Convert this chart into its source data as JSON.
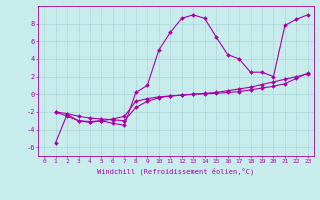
{
  "xlabel": "Windchill (Refroidissement éolien,°C)",
  "bg_color": "#c8ecec",
  "line_color": "#aa00aa",
  "grid_color": "#b0dada",
  "xlim": [
    -0.5,
    23.5
  ],
  "ylim": [
    -7,
    10
  ],
  "xticks": [
    0,
    1,
    2,
    3,
    4,
    5,
    6,
    7,
    8,
    9,
    10,
    11,
    12,
    13,
    14,
    15,
    16,
    17,
    18,
    19,
    20,
    21,
    22,
    23
  ],
  "yticks": [
    -6,
    -4,
    -2,
    0,
    2,
    4,
    6,
    8
  ],
  "series1_x": [
    1,
    2,
    3,
    4,
    5,
    6,
    7,
    8,
    9,
    10,
    11,
    12,
    13,
    14,
    15,
    16,
    17,
    18,
    19,
    20,
    21,
    22,
    23
  ],
  "series1_y": [
    -2.0,
    -2.5,
    -3.0,
    -3.2,
    -3.0,
    -3.3,
    -3.5,
    0.2,
    1.0,
    5.0,
    7.0,
    8.6,
    9.0,
    8.6,
    6.5,
    4.5,
    4.0,
    2.5,
    2.5,
    2.0,
    7.8,
    8.5,
    9.0
  ],
  "series2_x": [
    1,
    2,
    3,
    4,
    5,
    6,
    7,
    8,
    9,
    10,
    11,
    12,
    13,
    14,
    15,
    16,
    17,
    18,
    19,
    20,
    21,
    22,
    23
  ],
  "series2_y": [
    -5.5,
    -2.3,
    -3.0,
    -3.1,
    -3.0,
    -2.8,
    -2.5,
    -0.8,
    -0.5,
    -0.3,
    -0.2,
    -0.1,
    0.0,
    0.1,
    0.2,
    0.4,
    0.6,
    0.8,
    1.1,
    1.4,
    1.7,
    2.0,
    2.3
  ],
  "series3_x": [
    1,
    2,
    3,
    4,
    5,
    6,
    7,
    8,
    9,
    10,
    11,
    12,
    13,
    14,
    15,
    16,
    17,
    18,
    19,
    20,
    21,
    22,
    23
  ],
  "series3_y": [
    -2.0,
    -2.2,
    -2.5,
    -2.7,
    -2.8,
    -2.9,
    -3.0,
    -1.5,
    -0.8,
    -0.4,
    -0.2,
    -0.1,
    0.0,
    0.05,
    0.1,
    0.2,
    0.3,
    0.5,
    0.7,
    0.9,
    1.2,
    1.8,
    2.4
  ],
  "marker_size": 2.0,
  "line_width": 0.8,
  "tick_fontsize": 4.5,
  "xlabel_fontsize": 5.0
}
